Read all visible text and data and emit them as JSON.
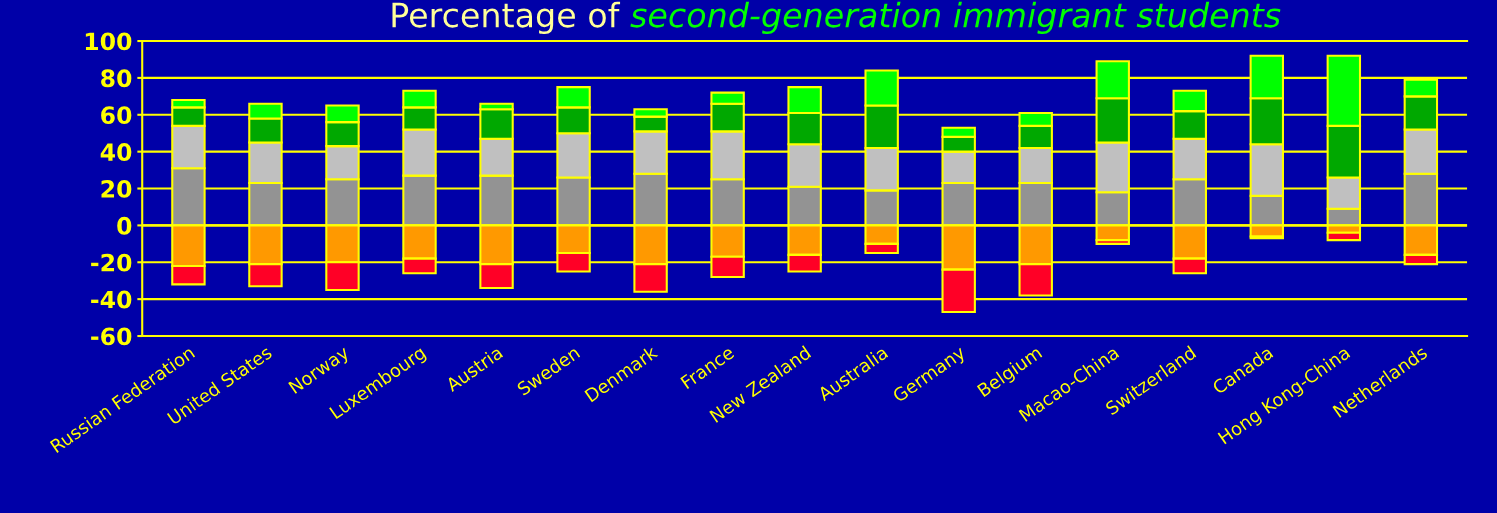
{
  "chart_data": {
    "type": "bar",
    "stacked": true,
    "title": "Percentage of",
    "subtitle": "second-generation immigrant students",
    "categories": [
      "Russian Federation",
      "United States",
      "Norway",
      "Luxembourg",
      "Austria",
      "Sweden",
      "Denmark",
      "France",
      "New Zealand",
      "Australia",
      "Germany",
      "Belgium",
      "Macao-China",
      "Switzerland",
      "Canada",
      "Hong Kong-China",
      "Netherlands"
    ],
    "series": [
      {
        "color": "#939393",
        "values": [
          31,
          23,
          25,
          27,
          27,
          26,
          28,
          25,
          21,
          19,
          23,
          23,
          18,
          25,
          16,
          9,
          28
        ]
      },
      {
        "color": "#c0c0c0",
        "values": [
          23,
          22,
          18,
          25,
          20,
          24,
          23,
          26,
          23,
          23,
          17,
          19,
          27,
          22,
          28,
          17,
          24
        ]
      },
      {
        "color": "#00a800",
        "values": [
          10,
          13,
          13,
          12,
          16,
          14,
          8,
          15,
          17,
          23,
          8,
          12,
          24,
          15,
          25,
          28,
          18
        ]
      },
      {
        "color": "#00ff00",
        "values": [
          4,
          8,
          9,
          9,
          3,
          11,
          4,
          6,
          14,
          19,
          5,
          7,
          20,
          11,
          23,
          38,
          9
        ]
      },
      {
        "color": "#ff9900",
        "values": [
          -22,
          -21,
          -20,
          -18,
          -21,
          -15,
          -21,
          -17,
          -16,
          -10,
          -24,
          -21,
          -8,
          -18,
          -6,
          -4,
          -16
        ]
      },
      {
        "color": "#ff0026",
        "values": [
          -10,
          -12,
          -15,
          -8,
          -13,
          -10,
          -15,
          -11,
          -9,
          -5,
          -23,
          -17,
          -2,
          -8,
          -1,
          -4,
          -5
        ]
      }
    ],
    "ylim": [
      -60,
      100
    ],
    "yticks": [
      -60,
      -40,
      -20,
      0,
      20,
      40,
      60,
      80,
      100
    ],
    "grid": "y",
    "legend": false
  }
}
